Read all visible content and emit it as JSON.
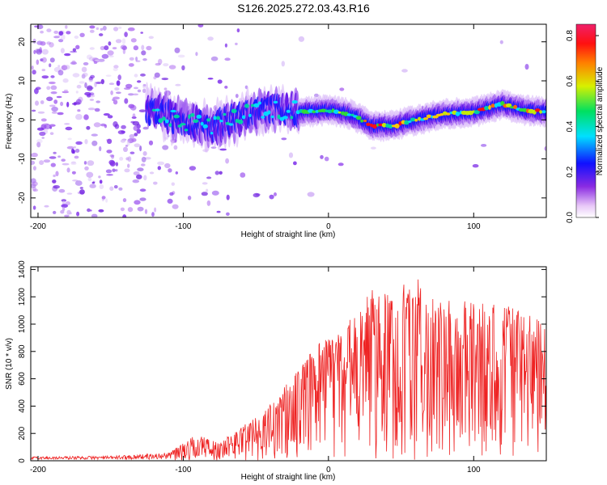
{
  "title": "S126.2025.272.03.43.R16",
  "chart_data": [
    {
      "type": "heatmap",
      "xlabel": "Height of straight line (km)",
      "ylabel": "Frequency (Hz)",
      "xlim": [
        -205,
        150
      ],
      "ylim": [
        -25,
        24.5
      ],
      "xticks": [
        -200,
        -100,
        0,
        100
      ],
      "yticks": [
        -20,
        -10,
        0,
        10,
        20
      ],
      "colorbar": {
        "label": "Normalized spectral amplitude",
        "range": [
          0,
          0.85
        ],
        "ticks": [
          "0.0",
          "0.2",
          "0.4",
          "0.6",
          "0.8"
        ],
        "colormap": "rainbow (white-violet-blue-cyan-green-yellow-red-magenta)"
      },
      "ridge_frequency_hz": [
        {
          "x": -125,
          "y": 3
        },
        {
          "x": -100,
          "y": 0
        },
        {
          "x": -80,
          "y": -2
        },
        {
          "x": -60,
          "y": 1
        },
        {
          "x": -40,
          "y": 3
        },
        {
          "x": -20,
          "y": 2
        },
        {
          "x": 0,
          "y": 2.5
        },
        {
          "x": 15,
          "y": 1.5
        },
        {
          "x": 30,
          "y": -1.5
        },
        {
          "x": 45,
          "y": -1.5
        },
        {
          "x": 60,
          "y": 0
        },
        {
          "x": 80,
          "y": 1.5
        },
        {
          "x": 100,
          "y": 2
        },
        {
          "x": 120,
          "y": 4
        },
        {
          "x": 135,
          "y": 2.5
        },
        {
          "x": 150,
          "y": 2
        }
      ]
    },
    {
      "type": "line",
      "xlabel": "Height of straight line (km)",
      "ylabel": "SNR (10 * v/v)",
      "xlim": [
        -205,
        150
      ],
      "ylim": [
        0,
        1420
      ],
      "xticks": [
        -200,
        -100,
        0,
        100
      ],
      "yticks": [
        0,
        200,
        400,
        600,
        800,
        1000,
        1200,
        1400
      ],
      "line_color": "#ee2222",
      "envelope": [
        {
          "x": -205,
          "y": 30
        },
        {
          "x": -150,
          "y": 35
        },
        {
          "x": -110,
          "y": 60
        },
        {
          "x": -90,
          "y": 200
        },
        {
          "x": -75,
          "y": 130
        },
        {
          "x": -60,
          "y": 250
        },
        {
          "x": -45,
          "y": 350
        },
        {
          "x": -30,
          "y": 550
        },
        {
          "x": -15,
          "y": 750
        },
        {
          "x": 0,
          "y": 950
        },
        {
          "x": 15,
          "y": 1050
        },
        {
          "x": 30,
          "y": 1250
        },
        {
          "x": 45,
          "y": 1200
        },
        {
          "x": 60,
          "y": 1400
        },
        {
          "x": 75,
          "y": 1150
        },
        {
          "x": 90,
          "y": 1200
        },
        {
          "x": 105,
          "y": 1150
        },
        {
          "x": 120,
          "y": 1150
        },
        {
          "x": 135,
          "y": 1100
        },
        {
          "x": 150,
          "y": 1000
        }
      ]
    }
  ]
}
